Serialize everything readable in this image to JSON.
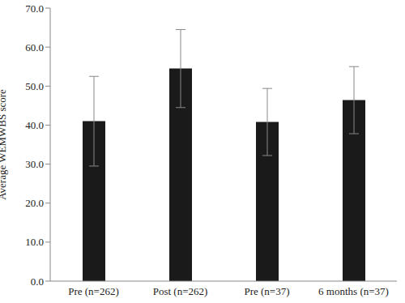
{
  "chart_data": {
    "type": "bar",
    "y_label": "Average WEMWBS score",
    "categories": [
      "Pre (n=262)",
      "Post (n=262)",
      "Pre (n=37)",
      "6 months (n=37)"
    ],
    "values": [
      41.0,
      54.5,
      40.8,
      46.4
    ],
    "errors": [
      11.5,
      10.0,
      8.6,
      8.6
    ],
    "color": "#1a1a1a",
    "ylim": [
      0,
      70
    ],
    "yticks": [
      {
        "value": 0,
        "label": "0.0"
      },
      {
        "value": 10,
        "label": "10.0"
      },
      {
        "value": 20,
        "label": "20.0"
      },
      {
        "value": 30,
        "label": "30.0"
      },
      {
        "value": 40,
        "label": "40.0"
      },
      {
        "value": 50,
        "label": "50.0"
      },
      {
        "value": 60,
        "label": "60.0"
      },
      {
        "value": 70,
        "label": "70.0"
      }
    ],
    "grid": false
  }
}
